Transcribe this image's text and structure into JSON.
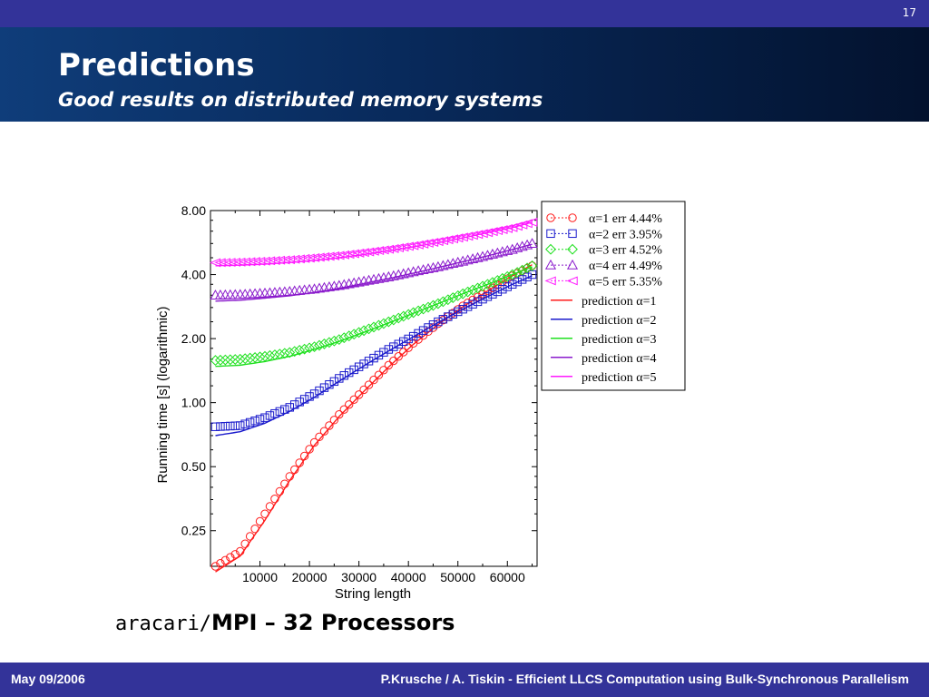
{
  "slide": {
    "number": "17",
    "title": "Predictions",
    "subtitle": "Good results on distributed memory systems",
    "caption_mono": "aracari/",
    "caption_rest": "MPI – 32 Processors"
  },
  "footer": {
    "date": "May 09/2006",
    "text": "P.Krusche / A. Tiskin - Efficient LLCS Computation using Bulk-Synchronous Parallelism"
  },
  "colors": {
    "topbar": "#333399",
    "header_dark": "#03122e",
    "alpha1": "#ff1a1a",
    "alpha2": "#1a1acc",
    "alpha3": "#1fe01f",
    "alpha4": "#8a1acc",
    "alpha5": "#ff1aff"
  },
  "chart_data": {
    "type": "line",
    "xlabel": "String length",
    "ylabel": "Running time [s] (logarithmic)",
    "yscale": "log",
    "xlim": [
      0,
      66000
    ],
    "ylim": [
      0.17,
      8.0
    ],
    "xticks": [
      "10000",
      "20000",
      "30000",
      "40000",
      "50000",
      "60000"
    ],
    "yticks": [
      "8.00",
      "4.00",
      "2.00",
      "1.00",
      "0.50",
      "0.25"
    ],
    "grid": false,
    "legend_position": "right",
    "measured_x": [
      1000,
      6000,
      11000,
      16000,
      21000,
      26000,
      31000,
      36000,
      41000,
      46000,
      51000,
      56000,
      61000,
      65000
    ],
    "series": [
      {
        "name": "α=1 err 4.44%",
        "marker": "circle",
        "color": "#ff1a1a",
        "legend": "odot",
        "measured": [
          0.17,
          0.2,
          0.3,
          0.45,
          0.65,
          0.88,
          1.15,
          1.5,
          1.9,
          2.35,
          2.85,
          3.35,
          3.95,
          4.4
        ],
        "prediction_name": "prediction α=1",
        "prediction": [
          0.16,
          0.19,
          0.28,
          0.43,
          0.63,
          0.86,
          1.13,
          1.47,
          1.88,
          2.33,
          2.82,
          3.35,
          3.95,
          4.45
        ]
      },
      {
        "name": "α=2 err 3.95%",
        "marker": "square",
        "color": "#1a1acc",
        "legend": "boxdot",
        "measured": [
          0.77,
          0.78,
          0.85,
          0.95,
          1.1,
          1.3,
          1.52,
          1.78,
          2.05,
          2.4,
          2.75,
          3.15,
          3.6,
          4.0
        ],
        "prediction_name": "prediction α=2",
        "prediction": [
          0.7,
          0.73,
          0.8,
          0.91,
          1.06,
          1.26,
          1.49,
          1.75,
          2.04,
          2.38,
          2.75,
          3.15,
          3.6,
          3.95
        ]
      },
      {
        "name": "α=3 err 4.52%",
        "marker": "diamond",
        "color": "#1fe01f",
        "legend": "diamond",
        "measured": [
          1.58,
          1.6,
          1.65,
          1.72,
          1.83,
          1.98,
          2.18,
          2.4,
          2.65,
          2.92,
          3.25,
          3.6,
          4.0,
          4.4
        ],
        "prediction_name": "prediction α=3",
        "prediction": [
          1.48,
          1.5,
          1.56,
          1.65,
          1.78,
          1.94,
          2.14,
          2.37,
          2.63,
          2.92,
          3.25,
          3.6,
          4.0,
          4.35
        ]
      },
      {
        "name": "α=4 err 4.49%",
        "marker": "triangle",
        "color": "#8a1acc",
        "legend": "triangle",
        "measured": [
          3.2,
          3.22,
          3.27,
          3.33,
          3.42,
          3.55,
          3.72,
          3.9,
          4.12,
          4.35,
          4.62,
          4.92,
          5.25,
          5.6
        ],
        "prediction_name": "prediction α=4",
        "prediction": [
          3.0,
          3.03,
          3.1,
          3.18,
          3.3,
          3.45,
          3.63,
          3.83,
          4.06,
          4.32,
          4.6,
          4.9,
          5.25,
          5.55
        ]
      },
      {
        "name": "α=5 err 5.35%",
        "marker": "triangle-left",
        "color": "#ff1aff",
        "legend": "triangle-left",
        "measured": [
          4.55,
          4.58,
          4.63,
          4.7,
          4.8,
          4.92,
          5.08,
          5.26,
          5.47,
          5.72,
          6.0,
          6.3,
          6.65,
          7.05
        ],
        "prediction_name": "prediction α=5",
        "prediction": [
          4.4,
          4.43,
          4.48,
          4.56,
          4.66,
          4.8,
          4.97,
          5.17,
          5.4,
          5.65,
          5.95,
          6.3,
          6.65,
          7.05
        ]
      }
    ]
  }
}
